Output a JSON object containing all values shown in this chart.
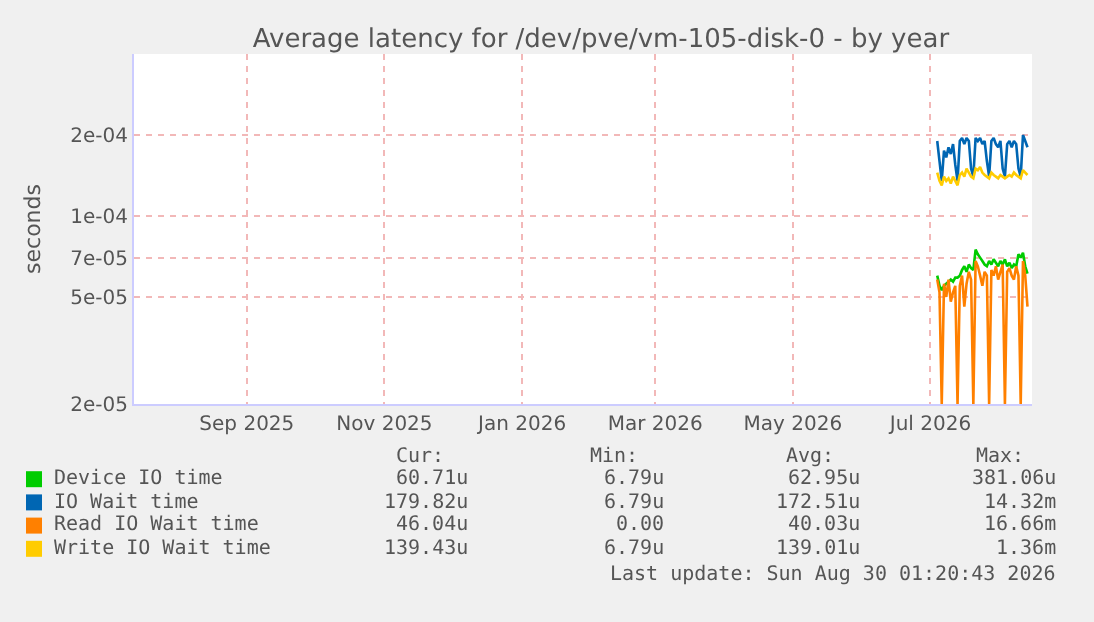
{
  "chart_data": {
    "type": "line",
    "title": "Average latency for /dev/pve/vm-105-disk-0 - by year",
    "ylabel": "seconds",
    "x": [
      "2026-07-19",
      "2026-07-20",
      "2026-07-21",
      "2026-07-22",
      "2026-07-23",
      "2026-07-24",
      "2026-07-25",
      "2026-07-26",
      "2026-07-27",
      "2026-07-28",
      "2026-07-29",
      "2026-07-30",
      "2026-07-31",
      "2026-08-01",
      "2026-08-02",
      "2026-08-03",
      "2026-08-04",
      "2026-08-05",
      "2026-08-06",
      "2026-08-07",
      "2026-08-08",
      "2026-08-09",
      "2026-08-10",
      "2026-08-11",
      "2026-08-12",
      "2026-08-13",
      "2026-08-14",
      "2026-08-15",
      "2026-08-16",
      "2026-08-17",
      "2026-08-18",
      "2026-08-19",
      "2026-08-20",
      "2026-08-21",
      "2026-08-22",
      "2026-08-23",
      "2026-08-24",
      "2026-08-25",
      "2026-08-26",
      "2026-08-27",
      "2026-08-28"
    ],
    "series": [
      {
        "name": "Device IO time",
        "color": "#00cc00",
        "values": [
          6e-05,
          5.5e-05,
          5.3e-05,
          5.5e-05,
          5.6e-05,
          5.7e-05,
          5.8e-05,
          5.7e-05,
          5.9e-05,
          5.9e-05,
          6e-05,
          6.3e-05,
          6.5e-05,
          6.2e-05,
          6.6e-05,
          6.4e-05,
          6.3e-05,
          7.5e-05,
          7.2e-05,
          7e-05,
          6.8e-05,
          6.6e-05,
          6.5e-05,
          6.8e-05,
          6.6e-05,
          6.9e-05,
          6.7e-05,
          6.5e-05,
          6.8e-05,
          6.6e-05,
          6.9e-05,
          6.5e-05,
          6.7e-05,
          6.4e-05,
          6.6e-05,
          6.5e-05,
          7.2e-05,
          7e-05,
          7.3e-05,
          6.5e-05,
          6.1e-05
        ]
      },
      {
        "name": "IO Wait time",
        "color": "#0066b3",
        "values": [
          0.00019,
          0.00016,
          0.000135,
          0.000175,
          0.000165,
          0.00018,
          0.00017,
          0.000185,
          0.000155,
          0.000135,
          0.00019,
          0.000195,
          0.000185,
          0.000195,
          0.00019,
          0.00015,
          0.00014,
          0.000195,
          0.00019,
          0.000195,
          0.000185,
          0.00019,
          0.00016,
          0.00014,
          0.00019,
          0.000195,
          0.000185,
          0.00018,
          0.00019,
          0.00015,
          0.00014,
          0.000185,
          0.00019,
          0.00018,
          0.00019,
          0.000185,
          0.00015,
          0.00014,
          0.0002,
          0.00019,
          0.00018
        ]
      },
      {
        "name": "Read IO Wait time",
        "color": "#ff8000",
        "values": [
          5.8e-05,
          5.2e-05,
          2e-05,
          5.6e-05,
          5e-05,
          5.8e-05,
          4.8e-05,
          5.2e-05,
          5.5e-05,
          2e-05,
          5.5e-05,
          6e-05,
          4.6e-05,
          5.6e-05,
          6.2e-05,
          5.8e-05,
          2e-05,
          6.8e-05,
          6.5e-05,
          6e-05,
          5.5e-05,
          6.2e-05,
          6e-05,
          2e-05,
          6.3e-05,
          6e-05,
          6.5e-05,
          5.8e-05,
          6.2e-05,
          6.6e-05,
          2e-05,
          6.2e-05,
          6.4e-05,
          6e-05,
          5.8e-05,
          6.5e-05,
          6e-05,
          2e-05,
          6.8e-05,
          6e-05,
          4.6e-05
        ]
      },
      {
        "name": "Write IO Wait time",
        "color": "#ffcc00",
        "values": [
          0.000145,
          0.000135,
          0.00013,
          0.00014,
          0.000135,
          0.000138,
          0.000132,
          0.00014,
          0.000135,
          0.00013,
          0.000142,
          0.000145,
          0.00014,
          0.00015,
          0.000145,
          0.00014,
          0.000138,
          0.00015,
          0.000148,
          0.000152,
          0.000145,
          0.000142,
          0.00014,
          0.000138,
          0.000145,
          0.000142,
          0.00014,
          0.000138,
          0.000142,
          0.00014,
          0.000138,
          0.00014,
          0.000142,
          0.00014,
          0.000145,
          0.000142,
          0.00014,
          0.000138,
          0.000148,
          0.000145,
          0.000142
        ]
      }
    ],
    "log": "y",
    "ylim": [
      2e-05,
      0.0004
    ],
    "yticks": [
      {
        "value": 2e-05,
        "label": "2e-05"
      },
      {
        "value": 5e-05,
        "label": "5e-05"
      },
      {
        "value": 7e-05,
        "label": "7e-05"
      },
      {
        "value": 0.0001,
        "label": "1e-04"
      },
      {
        "value": 0.0002,
        "label": "2e-04"
      }
    ],
    "xlim": [
      "2025-07-28",
      "2026-08-30"
    ],
    "xticks": [
      {
        "value": "2025-09-16",
        "label": "Sep 2025"
      },
      {
        "value": "2025-11-16",
        "label": "Nov 2025"
      },
      {
        "value": "2026-01-16",
        "label": "Jan 2026"
      },
      {
        "value": "2026-03-16",
        "label": "Mar 2026"
      },
      {
        "value": "2026-05-16",
        "label": "May 2026"
      },
      {
        "value": "2026-07-16",
        "label": "Jul 2026"
      }
    ],
    "grid": true,
    "legend": "bottom left",
    "marker": "none",
    "line_style": "solid",
    "annotations": [
      "Cur:",
      "Min:",
      "Avg:",
      "Max:",
      "60.71u",
      "6.79u",
      "62.95u",
      "381.06u",
      "179.82u",
      "6.79u",
      "172.51u",
      "14.32m",
      "46.04u",
      "0.00",
      "40.03u",
      "16.66m",
      "139.43u",
      "6.79u",
      "139.01u",
      "1.36m",
      "Last update: Sun Aug 30 01:20:43 2026"
    ]
  }
}
